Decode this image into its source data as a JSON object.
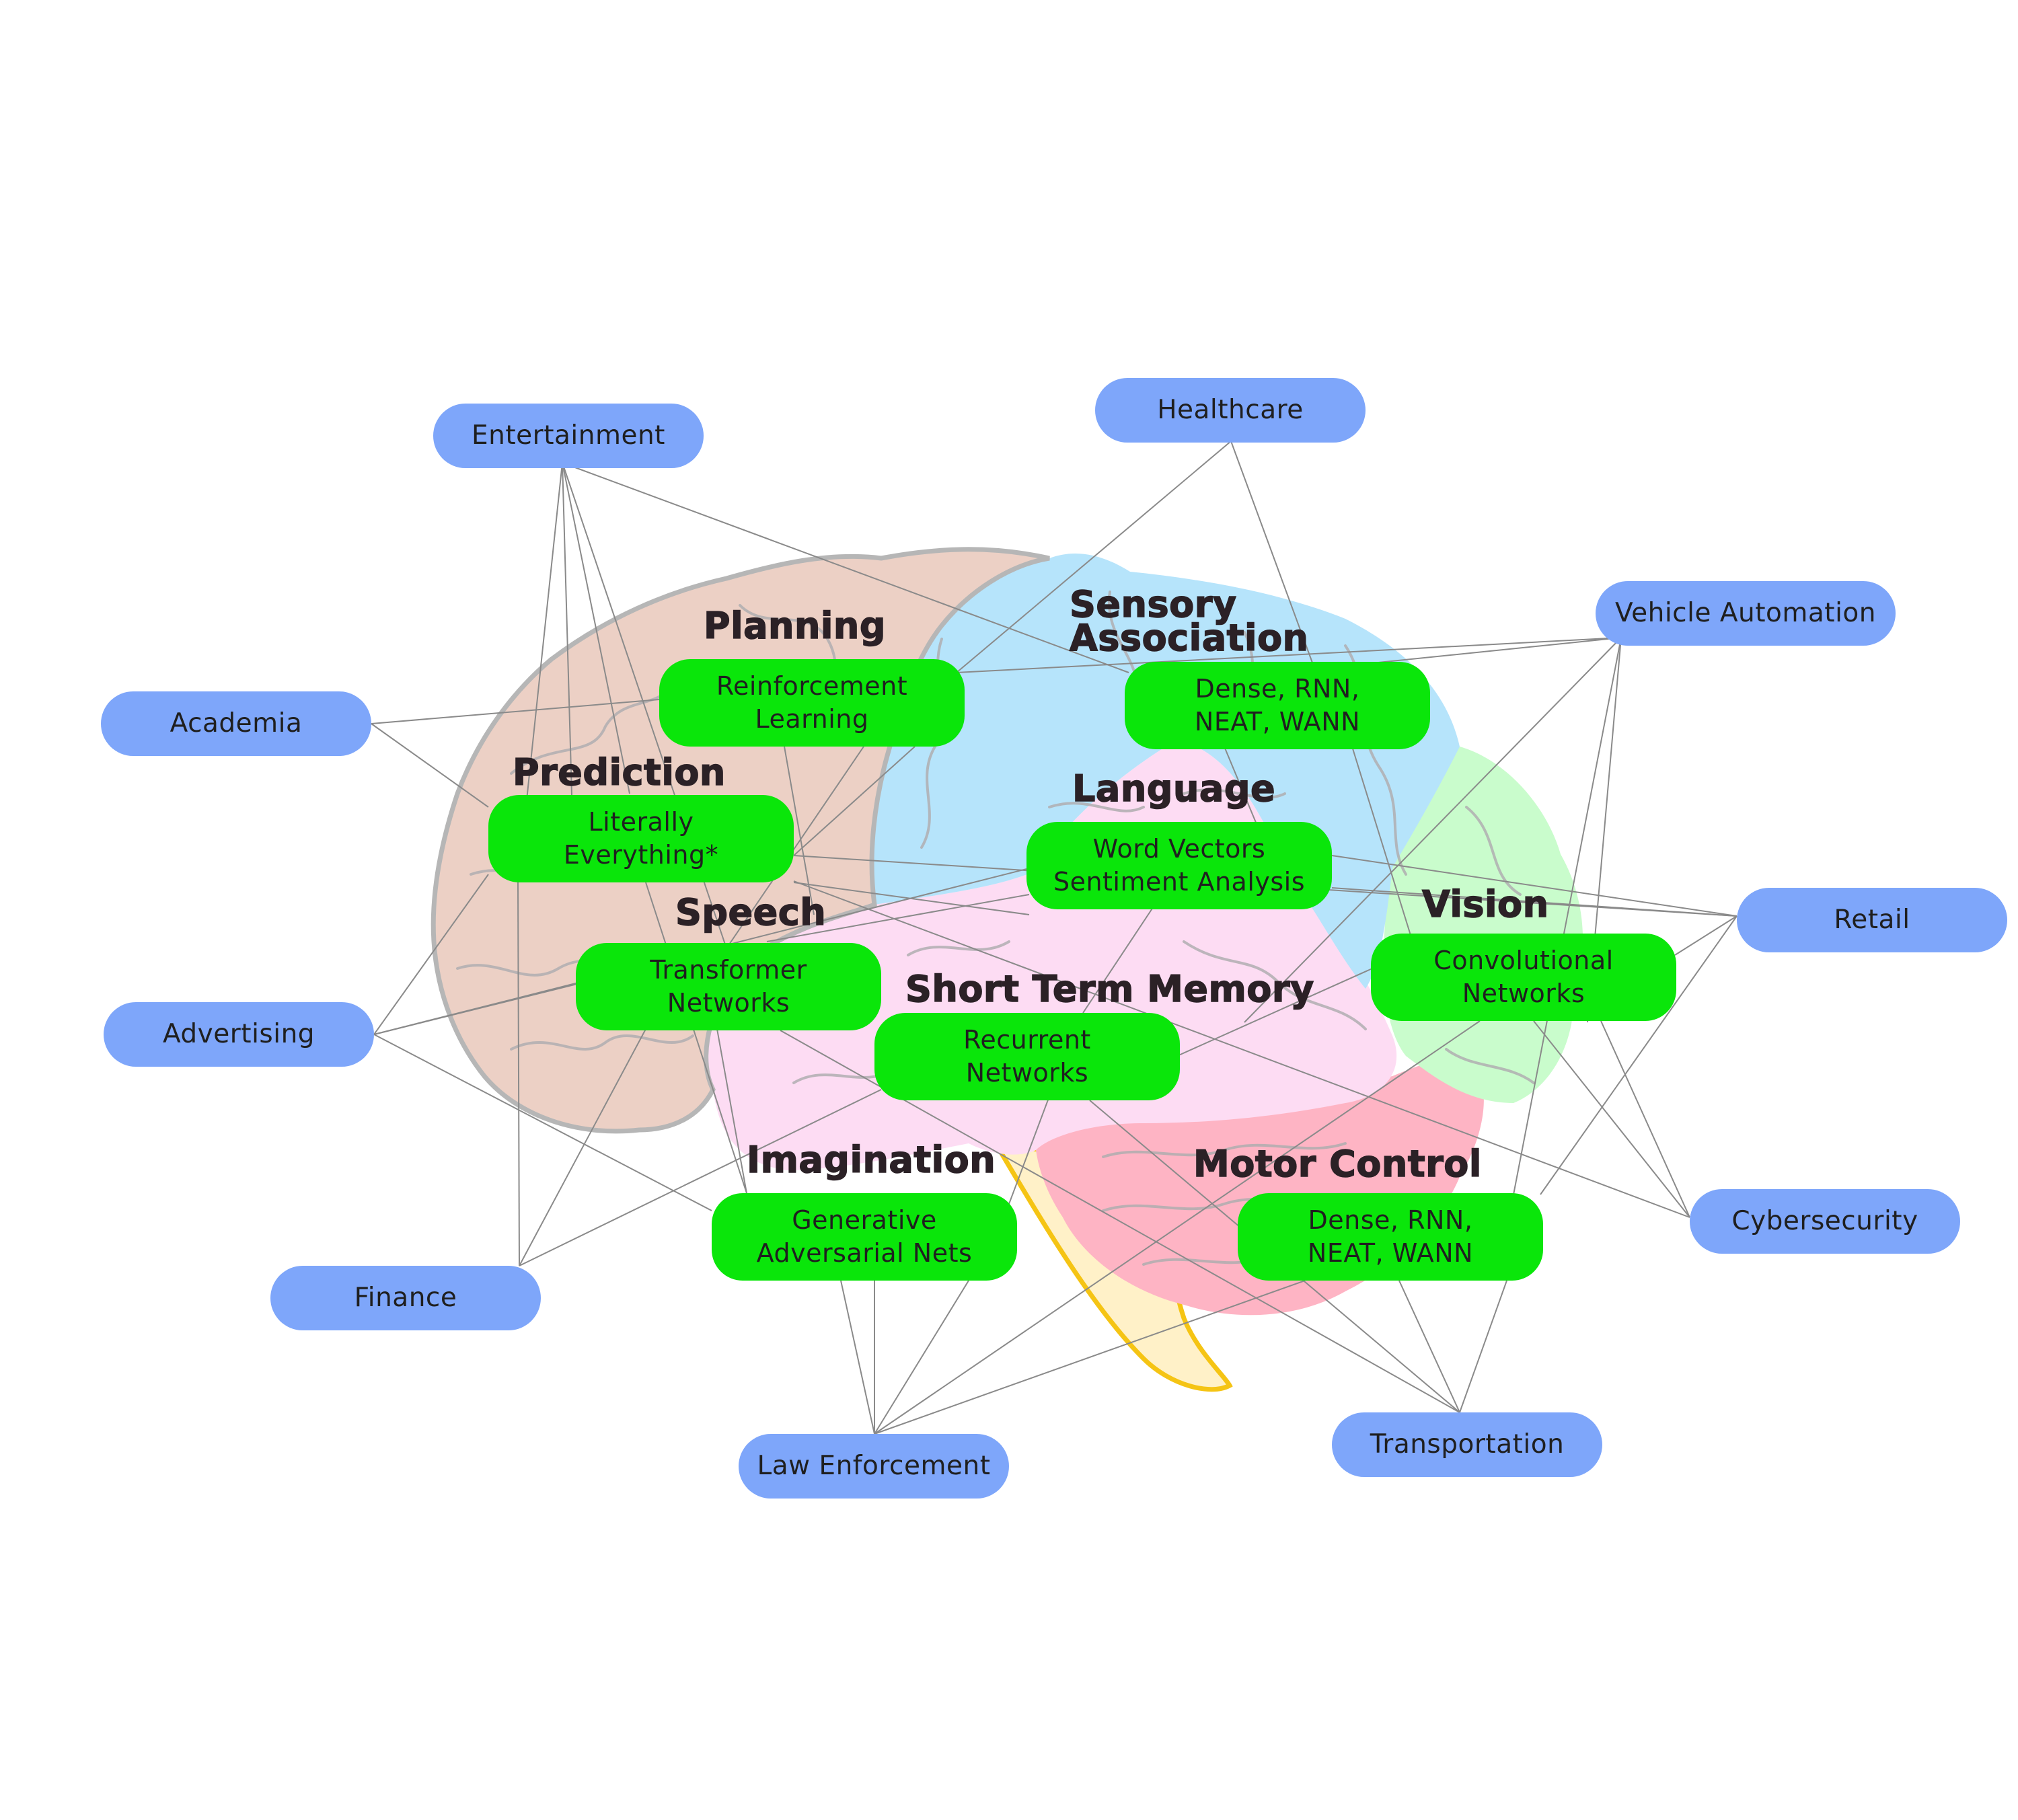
{
  "domains": {
    "entertainment": "Entertainment",
    "healthcare": "Healthcare",
    "vehicle_automation": "Vehicle Automation",
    "academia": "Academia",
    "retail": "Retail",
    "advertising": "Advertising",
    "cybersecurity": "Cybersecurity",
    "finance": "Finance",
    "transportation": "Transportation",
    "law_enforcement": "Law Enforcement"
  },
  "techniques": {
    "reinforcement": "Reinforcement\nLearning",
    "dense_sensory": "Dense, RNN,\nNEAT, WANN",
    "literally": "Literally\nEverything*",
    "word_vectors": "Word Vectors\nSentiment Analysis",
    "transformer": "Transformer\nNetworks",
    "convolutional": "Convolutional\nNetworks",
    "recurrent": "Recurrent\nNetworks",
    "generative": "Generative\nAdversarial Nets",
    "dense_motor": "Dense, RNN,\nNEAT, WANN"
  },
  "regions": {
    "planning": "Planning",
    "sensory": "Sensory\nAssociation",
    "prediction": "Prediction",
    "language": "Language",
    "speech": "Speech",
    "vision": "Vision",
    "short_term_memory": "Short Term Memory",
    "imagination": "Imagination",
    "motor_control": "Motor Control"
  },
  "colors": {
    "domain_fill": "#7ea6fa",
    "technique_fill": "#0ae60a",
    "frontal_lobe": "#ecd0c5",
    "parietal_lobe": "#b6e4fb",
    "occipital_lobe": "#c9fccc",
    "temporal_lobe": "#fddcf3",
    "cerebellum": "#feb4c4",
    "brain_stem": "#fff1c8",
    "brain_stem_outline": "#f5c414",
    "connector": "#8a8a8a"
  }
}
